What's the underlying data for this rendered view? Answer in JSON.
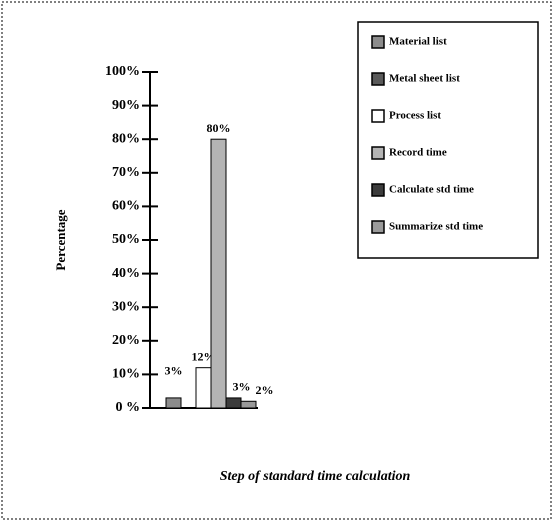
{
  "chart_data": {
    "type": "bar",
    "y_label": "Percentage",
    "x_label": "Step of standard time calculation",
    "series": [
      {
        "name": "Material list",
        "color": "#8c8c8c",
        "values": [
          3
        ],
        "value_labels": [
          "3%"
        ]
      },
      {
        "name": "Metal sheet list",
        "color": "#5a5a5a",
        "values": [
          0
        ]
      },
      {
        "name": "Process list",
        "color": "#ffffff",
        "values": [
          12
        ],
        "value_labels": [
          "12%"
        ]
      },
      {
        "name": "Record time",
        "color": "#b4b4b4",
        "values": [
          80
        ],
        "value_labels": [
          "80%"
        ]
      },
      {
        "name": "Calculate std time",
        "color": "#3c3c3c",
        "values": [
          3
        ],
        "value_labels": [
          "3%"
        ]
      },
      {
        "name": "Summarize std time",
        "color": "#9a9a9a",
        "values": [
          2
        ],
        "value_labels": [
          "2%"
        ]
      }
    ],
    "ylim": [
      0,
      100
    ],
    "yticks": [
      {
        "value": 0,
        "label": "0 %"
      },
      {
        "value": 10,
        "label": "10%"
      },
      {
        "value": 20,
        "label": "20%"
      },
      {
        "value": 30,
        "label": "30%"
      },
      {
        "value": 40,
        "label": "40%"
      },
      {
        "value": 50,
        "label": "50%"
      },
      {
        "value": 60,
        "label": "60%"
      },
      {
        "value": 70,
        "label": "70%"
      },
      {
        "value": 80,
        "label": "80%"
      },
      {
        "value": 90,
        "label": "90%"
      },
      {
        "value": 100,
        "label": "100%"
      }
    ]
  }
}
